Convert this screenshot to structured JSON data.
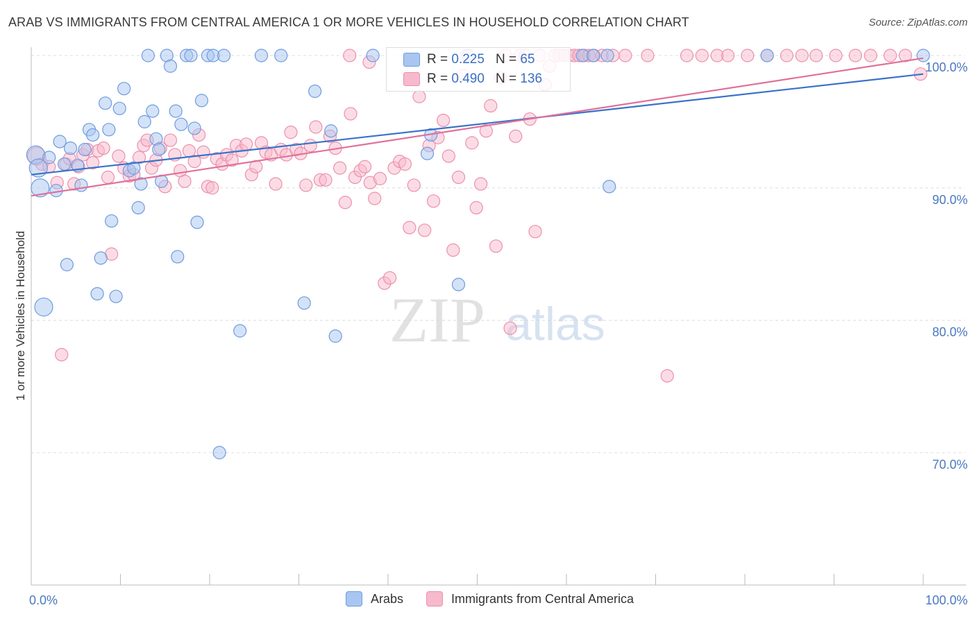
{
  "title": "ARAB VS IMMIGRANTS FROM CENTRAL AMERICA 1 OR MORE VEHICLES IN HOUSEHOLD CORRELATION CHART",
  "source": "Source: ZipAtlas.com",
  "watermark": {
    "zip": "ZIP",
    "atlas": "atlas"
  },
  "legend": {
    "rows": [
      {
        "r_label": "R =",
        "r_value": "0.225",
        "n_label": "N =",
        "n_value": "65"
      },
      {
        "r_label": "R =",
        "r_value": "0.490",
        "n_label": "N =",
        "n_value": "136"
      }
    ]
  },
  "bottom_legend": {
    "items": [
      "Arabs",
      "Immigrants from Central America"
    ]
  },
  "colors": {
    "arabs_fill": "#a8c6f0",
    "arabs_stroke": "#6e9be0",
    "arabs_line": "#3a72c8",
    "immig_fill": "#f7b9cc",
    "immig_stroke": "#ec8fae",
    "immig_line": "#e0709a",
    "grid": "#dddddd",
    "axis_text": "#4a78c2"
  },
  "chart_data": {
    "type": "scatter",
    "xlabel": "",
    "ylabel": "1 or more Vehicles in Household",
    "xlim": [
      0,
      100
    ],
    "ylim": [
      60,
      100
    ],
    "x_tick_labels": [
      "0.0%",
      "100.0%"
    ],
    "y_tick_labels": [
      "100.0%",
      "90.0%",
      "80.0%",
      "70.0%"
    ],
    "y_ticks": [
      100,
      90,
      80,
      70
    ],
    "grid": true,
    "series": [
      {
        "name": "Arabs",
        "trend": {
          "x": [
            0,
            100
          ],
          "y": [
            91.0,
            98.6
          ]
        },
        "points": [
          [
            0.5,
            92.5
          ],
          [
            0.8,
            91.5
          ],
          [
            1.0,
            90.0
          ],
          [
            1.4,
            81.0
          ],
          [
            2.0,
            92.3
          ],
          [
            2.8,
            89.8
          ],
          [
            3.2,
            93.5
          ],
          [
            3.7,
            91.8
          ],
          [
            4.0,
            84.2
          ],
          [
            4.4,
            93.0
          ],
          [
            5.2,
            91.7
          ],
          [
            5.6,
            90.2
          ],
          [
            6.0,
            92.9
          ],
          [
            6.5,
            94.4
          ],
          [
            6.9,
            94.0
          ],
          [
            7.4,
            82.0
          ],
          [
            7.8,
            84.7
          ],
          [
            8.3,
            96.4
          ],
          [
            8.7,
            94.4
          ],
          [
            9.0,
            87.5
          ],
          [
            9.5,
            81.8
          ],
          [
            9.9,
            96.0
          ],
          [
            10.4,
            97.5
          ],
          [
            11.0,
            91.3
          ],
          [
            11.5,
            91.5
          ],
          [
            12.0,
            88.5
          ],
          [
            12.3,
            90.3
          ],
          [
            12.7,
            95.0
          ],
          [
            13.1,
            100.0
          ],
          [
            13.6,
            95.8
          ],
          [
            14.0,
            93.7
          ],
          [
            14.3,
            92.9
          ],
          [
            14.6,
            90.5
          ],
          [
            15.2,
            100.0
          ],
          [
            15.6,
            99.2
          ],
          [
            16.2,
            95.8
          ],
          [
            16.4,
            84.8
          ],
          [
            16.8,
            94.8
          ],
          [
            17.4,
            100.0
          ],
          [
            17.9,
            100.0
          ],
          [
            18.3,
            94.5
          ],
          [
            18.6,
            87.4
          ],
          [
            19.1,
            96.6
          ],
          [
            19.8,
            100.0
          ],
          [
            20.4,
            100.0
          ],
          [
            21.1,
            70.0
          ],
          [
            21.6,
            100.0
          ],
          [
            23.4,
            79.2
          ],
          [
            25.8,
            100.0
          ],
          [
            28.0,
            100.0
          ],
          [
            30.6,
            81.3
          ],
          [
            31.8,
            97.3
          ],
          [
            33.6,
            94.3
          ],
          [
            34.1,
            78.8
          ],
          [
            38.3,
            100.0
          ],
          [
            44.4,
            92.6
          ],
          [
            44.8,
            94.0
          ],
          [
            47.9,
            82.7
          ],
          [
            49.0,
            100.0
          ],
          [
            61.8,
            100.0
          ],
          [
            63.0,
            100.0
          ],
          [
            64.6,
            100.0
          ],
          [
            64.8,
            90.1
          ],
          [
            82.5,
            100.0
          ],
          [
            100.0,
            100.0
          ]
        ]
      },
      {
        "name": "Immigrants from Central America",
        "trend": {
          "x": [
            0,
            100
          ],
          "y": [
            89.4,
            99.8
          ]
        },
        "points": [
          [
            0.6,
            92.4
          ],
          [
            1.2,
            91.8
          ],
          [
            2.0,
            91.6
          ],
          [
            2.9,
            90.4
          ],
          [
            3.4,
            77.4
          ],
          [
            3.9,
            91.8
          ],
          [
            4.3,
            92.2
          ],
          [
            4.8,
            90.3
          ],
          [
            5.3,
            91.6
          ],
          [
            5.8,
            92.5
          ],
          [
            6.3,
            92.9
          ],
          [
            6.9,
            91.9
          ],
          [
            7.5,
            92.8
          ],
          [
            8.1,
            93.0
          ],
          [
            8.6,
            90.8
          ],
          [
            9.0,
            85.0
          ],
          [
            9.8,
            92.4
          ],
          [
            10.4,
            91.5
          ],
          [
            11.0,
            90.9
          ],
          [
            11.5,
            91.0
          ],
          [
            12.1,
            92.3
          ],
          [
            12.6,
            93.2
          ],
          [
            13.0,
            93.6
          ],
          [
            13.5,
            91.5
          ],
          [
            14.0,
            92.1
          ],
          [
            14.5,
            93.0
          ],
          [
            15.0,
            90.1
          ],
          [
            15.6,
            93.6
          ],
          [
            16.1,
            92.5
          ],
          [
            16.7,
            91.3
          ],
          [
            17.2,
            90.5
          ],
          [
            17.7,
            92.8
          ],
          [
            18.3,
            92.0
          ],
          [
            18.8,
            94.0
          ],
          [
            19.3,
            92.7
          ],
          [
            19.8,
            90.1
          ],
          [
            20.3,
            90.0
          ],
          [
            20.8,
            92.2
          ],
          [
            21.4,
            91.8
          ],
          [
            21.9,
            92.5
          ],
          [
            22.5,
            92.1
          ],
          [
            23.0,
            93.2
          ],
          [
            23.6,
            92.8
          ],
          [
            24.1,
            93.3
          ],
          [
            24.7,
            91.0
          ],
          [
            25.2,
            91.6
          ],
          [
            25.8,
            93.4
          ],
          [
            26.3,
            92.7
          ],
          [
            26.9,
            92.5
          ],
          [
            27.4,
            90.3
          ],
          [
            28.0,
            92.9
          ],
          [
            28.6,
            92.5
          ],
          [
            29.1,
            94.2
          ],
          [
            29.7,
            92.9
          ],
          [
            30.2,
            92.6
          ],
          [
            30.8,
            90.2
          ],
          [
            31.3,
            93.2
          ],
          [
            31.9,
            94.6
          ],
          [
            32.4,
            90.6
          ],
          [
            33.0,
            90.6
          ],
          [
            33.5,
            93.9
          ],
          [
            34.1,
            93.0
          ],
          [
            34.6,
            91.5
          ],
          [
            35.2,
            88.9
          ],
          [
            35.8,
            95.6
          ],
          [
            36.3,
            90.8
          ],
          [
            36.9,
            91.3
          ],
          [
            37.4,
            91.6
          ],
          [
            38.0,
            90.4
          ],
          [
            38.5,
            89.2
          ],
          [
            39.1,
            90.7
          ],
          [
            39.6,
            82.8
          ],
          [
            40.2,
            83.2
          ],
          [
            40.7,
            91.5
          ],
          [
            41.3,
            92.0
          ],
          [
            41.9,
            91.8
          ],
          [
            42.4,
            87.0
          ],
          [
            42.9,
            90.2
          ],
          [
            43.5,
            96.9
          ],
          [
            44.1,
            86.8
          ],
          [
            44.6,
            93.2
          ],
          [
            45.1,
            89.0
          ],
          [
            45.6,
            93.8
          ],
          [
            46.2,
            95.1
          ],
          [
            46.8,
            92.4
          ],
          [
            47.3,
            85.3
          ],
          [
            47.9,
            90.8
          ],
          [
            48.4,
            98.5
          ],
          [
            48.8,
            100.0
          ],
          [
            49.4,
            93.4
          ],
          [
            49.9,
            88.5
          ],
          [
            50.4,
            90.3
          ],
          [
            51.0,
            94.3
          ],
          [
            51.5,
            96.2
          ],
          [
            52.1,
            85.6
          ],
          [
            52.6,
            98.3
          ],
          [
            53.2,
            100.0
          ],
          [
            53.7,
            79.4
          ],
          [
            54.3,
            93.9
          ],
          [
            54.8,
            100.0
          ],
          [
            55.4,
            100.0
          ],
          [
            55.9,
            95.2
          ],
          [
            56.5,
            86.7
          ],
          [
            57.0,
            100.0
          ],
          [
            57.6,
            97.8
          ],
          [
            58.1,
            99.2
          ],
          [
            58.7,
            100.0
          ],
          [
            59.2,
            100.0
          ],
          [
            59.8,
            100.0
          ],
          [
            60.3,
            100.0
          ],
          [
            60.9,
            100.0
          ],
          [
            61.4,
            100.0
          ],
          [
            62.0,
            100.0
          ],
          [
            62.5,
            100.0
          ],
          [
            63.1,
            100.0
          ],
          [
            64.0,
            100.0
          ],
          [
            65.2,
            100.0
          ],
          [
            66.6,
            100.0
          ],
          [
            69.1,
            100.0
          ],
          [
            71.3,
            75.8
          ],
          [
            73.5,
            100.0
          ],
          [
            75.2,
            100.0
          ],
          [
            76.9,
            100.0
          ],
          [
            78.1,
            100.0
          ],
          [
            80.3,
            100.0
          ],
          [
            82.5,
            100.0
          ],
          [
            84.7,
            100.0
          ],
          [
            86.4,
            100.0
          ],
          [
            88.0,
            100.0
          ],
          [
            90.2,
            100.0
          ],
          [
            92.4,
            100.0
          ],
          [
            94.1,
            100.0
          ],
          [
            96.3,
            100.0
          ],
          [
            98.0,
            100.0
          ],
          [
            99.7,
            98.6
          ],
          [
            35.7,
            100.0
          ],
          [
            37.9,
            99.5
          ]
        ]
      }
    ]
  }
}
